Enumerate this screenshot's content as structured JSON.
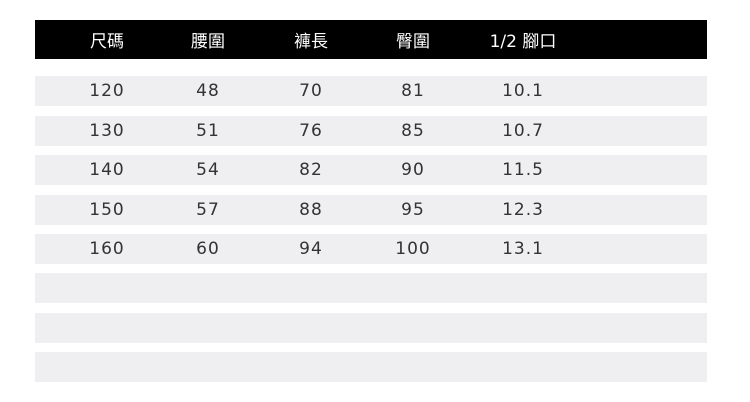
{
  "table": {
    "headers": [
      "尺碼",
      "腰圍",
      "褲長",
      "臀圍",
      "1/2 腳口"
    ],
    "rows": [
      [
        "120",
        "48",
        "70",
        "81",
        "10.1"
      ],
      [
        "130",
        "51",
        "76",
        "85",
        "10.7"
      ],
      [
        "140",
        "54",
        "82",
        "90",
        "11.5"
      ],
      [
        "150",
        "57",
        "88",
        "95",
        "12.3"
      ],
      [
        "160",
        "60",
        "94",
        "100",
        "13.1"
      ],
      [
        "",
        "",
        "",
        "",
        ""
      ],
      [
        "",
        "",
        "",
        "",
        ""
      ],
      [
        "",
        "",
        "",
        "",
        ""
      ]
    ]
  },
  "colors": {
    "header_bg": "#000000",
    "row_bg": "#efeef0",
    "text": "#333333"
  }
}
